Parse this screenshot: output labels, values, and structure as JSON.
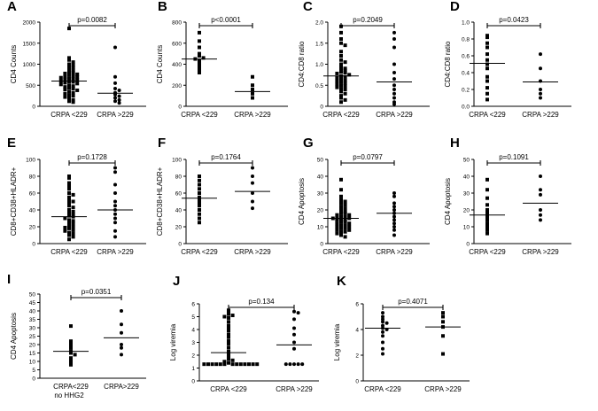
{
  "figure_title": "",
  "chart_data": [
    {
      "id": "A",
      "type": "scatter",
      "letter": "A",
      "ylabel": "CD4  Counts",
      "ylim": [
        0,
        2000
      ],
      "yticks": [
        0,
        500,
        1000,
        1500,
        2000
      ],
      "p_text": "p=0.0082",
      "categories": [
        "CRPA <229",
        "CRPA >229"
      ],
      "markers": [
        "square",
        "circle"
      ],
      "medians": [
        600,
        310
      ],
      "series": [
        {
          "name": "CRPA <229",
          "values": [
            1850,
            1150,
            1100,
            1050,
            1000,
            980,
            950,
            920,
            880,
            850,
            820,
            800,
            780,
            760,
            740,
            720,
            700,
            690,
            680,
            660,
            650,
            640,
            620,
            600,
            590,
            580,
            560,
            540,
            520,
            500,
            480,
            460,
            440,
            420,
            400,
            380,
            350,
            320,
            300,
            270,
            250,
            220,
            200,
            150,
            120,
            100
          ]
        },
        {
          "name": "CRPA >229",
          "values": [
            1400,
            700,
            550,
            420,
            380,
            320,
            280,
            240,
            200,
            150,
            120,
            80
          ]
        }
      ]
    },
    {
      "id": "B",
      "type": "scatter",
      "letter": "B",
      "ylabel": "CD4  Counts",
      "ylim": [
        0,
        800
      ],
      "yticks": [
        0,
        200,
        400,
        600,
        800
      ],
      "p_text": "p<0.0001",
      "categories": [
        "CRPA <229",
        "CRPA >229"
      ],
      "markers": [
        "square",
        "square"
      ],
      "medians": [
        450,
        140
      ],
      "series": [
        {
          "name": "CRPA <229",
          "values": [
            700,
            620,
            560,
            500,
            480,
            460,
            450,
            430,
            400,
            370,
            340,
            320
          ]
        },
        {
          "name": "CRPA >229",
          "values": [
            280,
            200,
            160,
            120,
            80
          ]
        }
      ]
    },
    {
      "id": "C",
      "type": "scatter",
      "letter": "C",
      "ylabel": "CD4:CD8 ratio",
      "ylim": [
        0,
        2
      ],
      "yticks": [
        "0",
        "0.5",
        "1.0",
        "1.5",
        "2.0"
      ],
      "p_text": "p=0.2049",
      "categories": [
        "CRPA <229",
        "CRPA >229"
      ],
      "markers": [
        "square",
        "circle"
      ],
      "medians": [
        0.72,
        0.58
      ],
      "series": [
        {
          "name": "CRPA <229",
          "values": [
            1.9,
            1.75,
            1.6,
            1.5,
            1.45,
            1.3,
            1.2,
            1.1,
            1.05,
            1.0,
            0.95,
            0.9,
            0.88,
            0.85,
            0.82,
            0.8,
            0.78,
            0.75,
            0.72,
            0.7,
            0.68,
            0.65,
            0.62,
            0.6,
            0.58,
            0.55,
            0.52,
            0.5,
            0.48,
            0.45,
            0.42,
            0.4,
            0.35,
            0.3,
            0.25,
            0.2,
            0.15,
            0.1
          ]
        },
        {
          "name": "CRPA >229",
          "values": [
            1.75,
            1.6,
            1.4,
            1.0,
            0.8,
            0.65,
            0.5,
            0.4,
            0.3,
            0.2,
            0.1,
            0.05
          ]
        }
      ]
    },
    {
      "id": "D",
      "type": "scatter",
      "letter": "D",
      "ylabel": "CD4:CD8 ratio",
      "ylim": [
        0,
        1
      ],
      "yticks": [
        "0.0",
        "0.2",
        "0.4",
        "0.6",
        "0.8",
        "1.0"
      ],
      "p_text": "p=0.0423",
      "categories": [
        "CRPA <229",
        "CRPA >229"
      ],
      "markers": [
        "square",
        "circle"
      ],
      "medians": [
        0.51,
        0.29
      ],
      "series": [
        {
          "name": "CRPA <229",
          "values": [
            0.84,
            0.82,
            0.75,
            0.7,
            0.62,
            0.55,
            0.5,
            0.45,
            0.35,
            0.3,
            0.22,
            0.15,
            0.08
          ]
        },
        {
          "name": "CRPA >229",
          "values": [
            0.62,
            0.45,
            0.3,
            0.2,
            0.15,
            0.1
          ]
        }
      ]
    },
    {
      "id": "E",
      "type": "scatter",
      "letter": "E",
      "ylabel": "CD8+CD38+HLADR+",
      "ylim": [
        0,
        100
      ],
      "yticks": [
        0,
        20,
        40,
        60,
        80,
        100
      ],
      "p_text": "p=0.1728",
      "categories": [
        "CRPA <229",
        "CRPA >229"
      ],
      "markers": [
        "square",
        "circle"
      ],
      "medians": [
        32,
        40
      ],
      "series": [
        {
          "name": "CRPA <229",
          "values": [
            80,
            78,
            72,
            68,
            65,
            60,
            58,
            55,
            52,
            50,
            48,
            45,
            43,
            40,
            38,
            36,
            35,
            33,
            32,
            30,
            28,
            27,
            25,
            24,
            22,
            20,
            19,
            18,
            16,
            15,
            13,
            12,
            10,
            8,
            5
          ]
        },
        {
          "name": "CRPA >229",
          "values": [
            90,
            85,
            70,
            60,
            50,
            45,
            40,
            35,
            30,
            25,
            15,
            8
          ]
        }
      ]
    },
    {
      "id": "F",
      "type": "scatter",
      "letter": "F",
      "ylabel": "CD8+CD38+HLADR+",
      "ylim": [
        0,
        100
      ],
      "yticks": [
        0,
        20,
        40,
        60,
        80,
        100
      ],
      "p_text": "p=0.1764",
      "categories": [
        "CRPA <229",
        "CRPA >229"
      ],
      "markers": [
        "square",
        "circle"
      ],
      "medians": [
        54,
        62
      ],
      "series": [
        {
          "name": "CRPA <229",
          "values": [
            80,
            75,
            70,
            65,
            60,
            55,
            52,
            48,
            45,
            40,
            35,
            30,
            25
          ]
        },
        {
          "name": "CRPA >229",
          "values": [
            90,
            80,
            72,
            60,
            50,
            42
          ]
        }
      ]
    },
    {
      "id": "G",
      "type": "scatter",
      "letter": "G",
      "ylabel": "CD4  Apoptosis",
      "ylim": [
        0,
        50
      ],
      "yticks": [
        0,
        10,
        20,
        30,
        40,
        50
      ],
      "p_text": "p=0.0797",
      "categories": [
        "CRPA <229",
        "CRPA >229"
      ],
      "markers": [
        "square",
        "circle"
      ],
      "medians": [
        15,
        18
      ],
      "series": [
        {
          "name": "CRPA <229",
          "values": [
            38,
            32,
            28,
            26,
            25,
            24,
            23,
            22,
            21,
            20,
            19,
            18,
            18,
            17,
            17,
            16,
            16,
            15,
            15,
            15,
            14,
            14,
            14,
            13,
            13,
            12,
            12,
            11,
            11,
            10,
            10,
            9,
            9,
            8,
            8,
            7,
            7,
            6,
            5,
            4
          ]
        },
        {
          "name": "CRPA >229",
          "values": [
            30,
            28,
            24,
            22,
            20,
            18,
            16,
            14,
            12,
            10,
            8,
            5
          ]
        }
      ]
    },
    {
      "id": "H",
      "type": "scatter",
      "letter": "H",
      "ylabel": "CD4  Apoptosis",
      "ylim": [
        0,
        50
      ],
      "yticks": [
        0,
        10,
        20,
        30,
        40,
        50
      ],
      "p_text": "p=0.1091",
      "categories": [
        "CRPA <229",
        "CRPA >229"
      ],
      "markers": [
        "square",
        "circle"
      ],
      "medians": [
        17,
        24
      ],
      "series": [
        {
          "name": "CRPA <229",
          "values": [
            38,
            32,
            27,
            23,
            20,
            18,
            16,
            14,
            12,
            10,
            8,
            6
          ]
        },
        {
          "name": "CRPA >229",
          "values": [
            40,
            32,
            29,
            20,
            17,
            14
          ]
        }
      ]
    },
    {
      "id": "I",
      "type": "scatter",
      "letter": "I",
      "ylabel": "CD4 Apoptosis",
      "ylim": [
        0,
        50
      ],
      "yticks": [
        0,
        5,
        10,
        15,
        20,
        25,
        30,
        35,
        40,
        45,
        50
      ],
      "p_text": "p=0.0351",
      "categories": [
        "CRPA<229",
        "CRPA>229"
      ],
      "category_notes": [
        "no HHG2",
        ""
      ],
      "markers": [
        "square",
        "circle"
      ],
      "medians": [
        16,
        24
      ],
      "series": [
        {
          "name": "CRPA<229 no HHG2",
          "values": [
            31,
            22,
            20,
            18,
            16,
            15,
            14,
            12,
            10,
            8
          ]
        },
        {
          "name": "CRPA>229",
          "values": [
            40,
            32,
            27,
            20,
            18,
            14
          ]
        }
      ]
    },
    {
      "id": "J",
      "type": "scatter",
      "letter": "J",
      "ylabel": "Log viremia",
      "ylim": [
        0,
        6
      ],
      "yticks": [
        0,
        1,
        2,
        3,
        4,
        5,
        6
      ],
      "p_text": "p=0.134",
      "categories": [
        "CRPA <229",
        "CRPA >229"
      ],
      "markers": [
        "square",
        "circle"
      ],
      "medians": [
        2.2,
        2.8
      ],
      "series": [
        {
          "name": "CRPA <229",
          "values": [
            5.5,
            5.4,
            5.2,
            5.1,
            5.0,
            4.9,
            4.6,
            4.3,
            4.1,
            3.9,
            3.6,
            3.4,
            3.1,
            2.9,
            2.6,
            2.3,
            2.1,
            1.9,
            1.7,
            1.6,
            1.5,
            1.4,
            1.3,
            1.3,
            1.3,
            1.3,
            1.3,
            1.3,
            1.3,
            1.3,
            1.3,
            1.3,
            1.3,
            1.3,
            1.3
          ]
        },
        {
          "name": "CRPA >229",
          "values": [
            5.4,
            5.3,
            4.8,
            4.1,
            3.6,
            3.0,
            2.5,
            1.3,
            1.3,
            1.3,
            1.3,
            1.3
          ]
        }
      ]
    },
    {
      "id": "K",
      "type": "scatter",
      "letter": "K",
      "ylabel": "Log viremia",
      "ylim": [
        0,
        6
      ],
      "yticks": [
        0,
        2,
        4,
        6
      ],
      "p_text": "p=0.4071",
      "categories": [
        "CRPA <229",
        "CRPA >229"
      ],
      "markers": [
        "circle",
        "square"
      ],
      "medians": [
        4.1,
        4.2
      ],
      "series": [
        {
          "name": "CRPA <229",
          "values": [
            5.3,
            5.0,
            4.8,
            4.6,
            4.5,
            4.3,
            4.1,
            4.0,
            3.8,
            3.5,
            3.0,
            2.5,
            2.1
          ]
        },
        {
          "name": "CRPA >229",
          "values": [
            5.3,
            5.0,
            4.6,
            4.2,
            3.5,
            2.1
          ]
        }
      ]
    }
  ]
}
